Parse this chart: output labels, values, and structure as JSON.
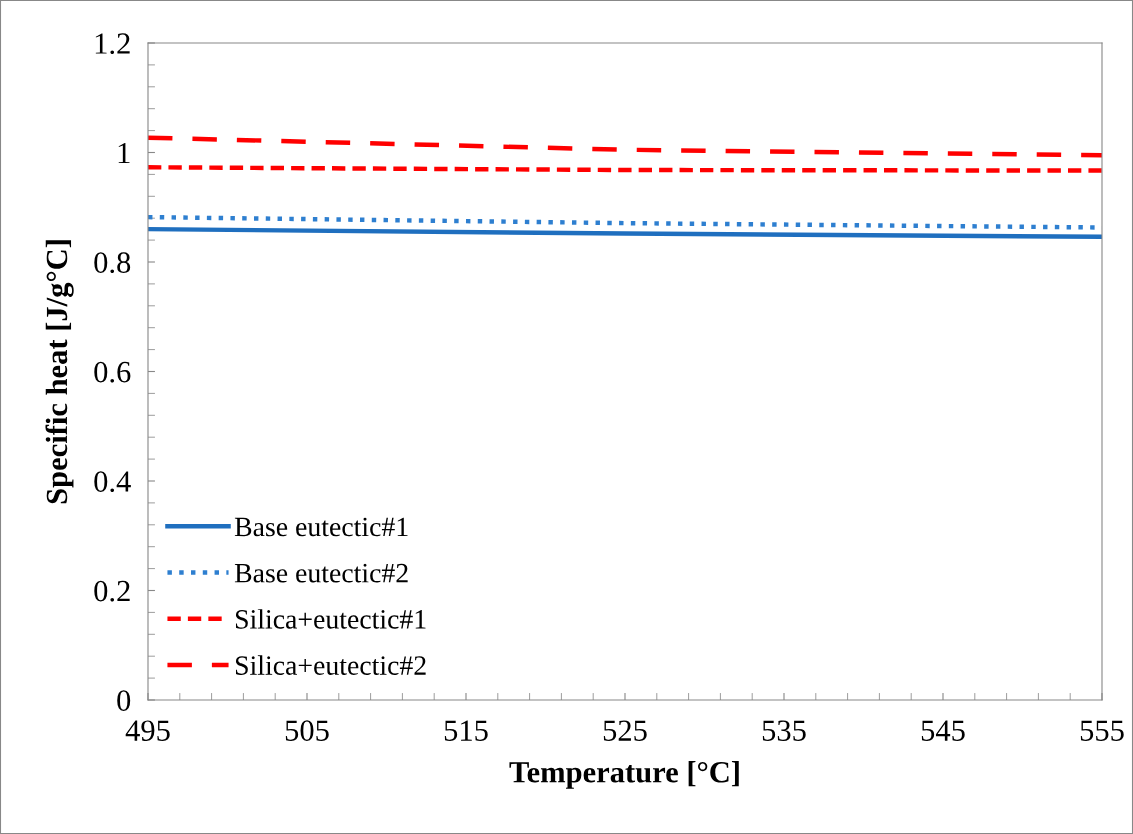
{
  "chart_data": {
    "type": "line",
    "xlabel": "Temperature [°C]",
    "ylabel": "Specific heat [J/g°C]",
    "x": [
      495,
      525,
      555
    ],
    "series": [
      {
        "name": "Base eutectic#1",
        "color": "#1f6fbf",
        "line_style": "solid",
        "values": [
          0.86,
          0.852,
          0.846
        ]
      },
      {
        "name": "Base eutectic#2",
        "color": "#2e7fd0",
        "line_style": "dotted",
        "values": [
          0.882,
          0.871,
          0.863
        ]
      },
      {
        "name": "Silica+eutectic#1",
        "color": "#ff0000",
        "line_style": "dashed",
        "values": [
          0.973,
          0.968,
          0.967
        ]
      },
      {
        "name": "Silica+eutectic#2",
        "color": "#ff0000",
        "line_style": "dashed",
        "values": [
          1.027,
          1.005,
          0.995
        ]
      }
    ],
    "xlim": [
      495,
      555
    ],
    "xticks": [
      495,
      505,
      515,
      525,
      535,
      545,
      555
    ],
    "ylim": [
      0,
      1.2
    ],
    "yticks": [
      0,
      0.2,
      0.4,
      0.6,
      0.8,
      1,
      1.2
    ],
    "grid": false,
    "legend": "bottom left",
    "marker": "none"
  }
}
